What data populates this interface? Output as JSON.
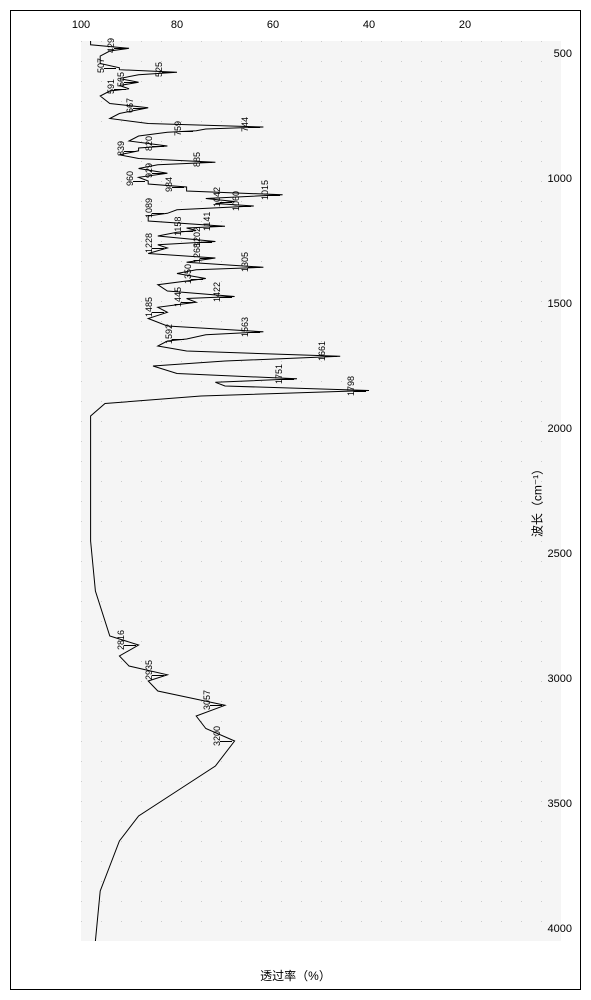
{
  "chart": {
    "type": "line",
    "background_color": "#f5f5f5",
    "line_color": "#000000",
    "grid_color": "#cccccc",
    "xlabel": "透过率（%）",
    "ylabel": "波长（cm⁻¹）",
    "label_fontsize": 12,
    "tick_fontsize": 11,
    "peak_fontsize": 9,
    "x_axis": {
      "min": 0,
      "max": 100,
      "ticks": [
        20,
        40,
        60,
        80,
        100
      ]
    },
    "y_axis": {
      "min": 400,
      "max": 4000,
      "ticks": [
        500,
        1000,
        1500,
        2000,
        2500,
        3000,
        3500,
        4000
      ]
    },
    "peaks": [
      {
        "wn": 429,
        "t": 90
      },
      {
        "wn": 507,
        "t": 92
      },
      {
        "wn": 525,
        "t": 80
      },
      {
        "wn": 565,
        "t": 88
      },
      {
        "wn": 591,
        "t": 90
      },
      {
        "wn": 667,
        "t": 86
      },
      {
        "wn": 744,
        "t": 62
      },
      {
        "wn": 759,
        "t": 76
      },
      {
        "wn": 820,
        "t": 82
      },
      {
        "wn": 839,
        "t": 88
      },
      {
        "wn": 885,
        "t": 72
      },
      {
        "wn": 929,
        "t": 82
      },
      {
        "wn": 960,
        "t": 86
      },
      {
        "wn": 984,
        "t": 78
      },
      {
        "wn": 1015,
        "t": 58
      },
      {
        "wn": 1042,
        "t": 68
      },
      {
        "wn": 1060,
        "t": 64
      },
      {
        "wn": 1089,
        "t": 82
      },
      {
        "wn": 1141,
        "t": 70
      },
      {
        "wn": 1158,
        "t": 76
      },
      {
        "wn": 1202,
        "t": 72
      },
      {
        "wn": 1228,
        "t": 82
      },
      {
        "wn": 1268,
        "t": 72
      },
      {
        "wn": 1305,
        "t": 62
      },
      {
        "wn": 1350,
        "t": 74
      },
      {
        "wn": 1422,
        "t": 68
      },
      {
        "wn": 1445,
        "t": 76
      },
      {
        "wn": 1485,
        "t": 82
      },
      {
        "wn": 1563,
        "t": 62
      },
      {
        "wn": 1592,
        "t": 78
      },
      {
        "wn": 1661,
        "t": 46
      },
      {
        "wn": 1751,
        "t": 55
      },
      {
        "wn": 1798,
        "t": 40
      },
      {
        "wn": 2816,
        "t": 88
      },
      {
        "wn": 2935,
        "t": 82
      },
      {
        "wn": 3057,
        "t": 70
      },
      {
        "wn": 3200,
        "t": 68
      }
    ],
    "baseline_t": 98,
    "trace": [
      {
        "wn": 4000,
        "t": 97
      },
      {
        "wn": 3800,
        "t": 96
      },
      {
        "wn": 3700,
        "t": 94
      },
      {
        "wn": 3600,
        "t": 92
      },
      {
        "wn": 3500,
        "t": 88
      },
      {
        "wn": 3400,
        "t": 80
      },
      {
        "wn": 3300,
        "t": 72
      },
      {
        "wn": 3200,
        "t": 68
      },
      {
        "wn": 3150,
        "t": 74
      },
      {
        "wn": 3100,
        "t": 76
      },
      {
        "wn": 3057,
        "t": 70
      },
      {
        "wn": 3000,
        "t": 84
      },
      {
        "wn": 2960,
        "t": 86
      },
      {
        "wn": 2935,
        "t": 82
      },
      {
        "wn": 2900,
        "t": 90
      },
      {
        "wn": 2860,
        "t": 92
      },
      {
        "wn": 2816,
        "t": 88
      },
      {
        "wn": 2780,
        "t": 94
      },
      {
        "wn": 2600,
        "t": 97
      },
      {
        "wn": 2400,
        "t": 98
      },
      {
        "wn": 2200,
        "t": 98
      },
      {
        "wn": 2000,
        "t": 98
      },
      {
        "wn": 1900,
        "t": 98
      },
      {
        "wn": 1850,
        "t": 95
      },
      {
        "wn": 1820,
        "t": 75
      },
      {
        "wn": 1798,
        "t": 40
      },
      {
        "wn": 1780,
        "t": 70
      },
      {
        "wn": 1765,
        "t": 72
      },
      {
        "wn": 1751,
        "t": 55
      },
      {
        "wn": 1730,
        "t": 80
      },
      {
        "wn": 1700,
        "t": 85
      },
      {
        "wn": 1680,
        "t": 70
      },
      {
        "wn": 1661,
        "t": 46
      },
      {
        "wn": 1640,
        "t": 78
      },
      {
        "wn": 1620,
        "t": 84
      },
      {
        "wn": 1600,
        "t": 82
      },
      {
        "wn": 1592,
        "t": 78
      },
      {
        "wn": 1575,
        "t": 74
      },
      {
        "wn": 1563,
        "t": 62
      },
      {
        "wn": 1540,
        "t": 82
      },
      {
        "wn": 1510,
        "t": 86
      },
      {
        "wn": 1485,
        "t": 82
      },
      {
        "wn": 1465,
        "t": 84
      },
      {
        "wn": 1445,
        "t": 76
      },
      {
        "wn": 1430,
        "t": 78
      },
      {
        "wn": 1422,
        "t": 68
      },
      {
        "wn": 1400,
        "t": 82
      },
      {
        "wn": 1375,
        "t": 84
      },
      {
        "wn": 1350,
        "t": 74
      },
      {
        "wn": 1330,
        "t": 80
      },
      {
        "wn": 1315,
        "t": 76
      },
      {
        "wn": 1305,
        "t": 62
      },
      {
        "wn": 1285,
        "t": 78
      },
      {
        "wn": 1268,
        "t": 72
      },
      {
        "wn": 1250,
        "t": 86
      },
      {
        "wn": 1228,
        "t": 82
      },
      {
        "wn": 1215,
        "t": 84
      },
      {
        "wn": 1202,
        "t": 72
      },
      {
        "wn": 1180,
        "t": 84
      },
      {
        "wn": 1165,
        "t": 80
      },
      {
        "wn": 1158,
        "t": 76
      },
      {
        "wn": 1148,
        "t": 78
      },
      {
        "wn": 1141,
        "t": 70
      },
      {
        "wn": 1120,
        "t": 86
      },
      {
        "wn": 1100,
        "t": 86
      },
      {
        "wn": 1089,
        "t": 82
      },
      {
        "wn": 1075,
        "t": 80
      },
      {
        "wn": 1060,
        "t": 64
      },
      {
        "wn": 1050,
        "t": 72
      },
      {
        "wn": 1042,
        "t": 68
      },
      {
        "wn": 1030,
        "t": 74
      },
      {
        "wn": 1015,
        "t": 58
      },
      {
        "wn": 1000,
        "t": 78
      },
      {
        "wn": 984,
        "t": 78
      },
      {
        "wn": 972,
        "t": 86
      },
      {
        "wn": 960,
        "t": 86
      },
      {
        "wn": 945,
        "t": 88
      },
      {
        "wn": 929,
        "t": 82
      },
      {
        "wn": 910,
        "t": 88
      },
      {
        "wn": 895,
        "t": 84
      },
      {
        "wn": 885,
        "t": 72
      },
      {
        "wn": 870,
        "t": 88
      },
      {
        "wn": 855,
        "t": 92
      },
      {
        "wn": 839,
        "t": 88
      },
      {
        "wn": 828,
        "t": 88
      },
      {
        "wn": 820,
        "t": 82
      },
      {
        "wn": 800,
        "t": 90
      },
      {
        "wn": 780,
        "t": 88
      },
      {
        "wn": 765,
        "t": 82
      },
      {
        "wn": 759,
        "t": 76
      },
      {
        "wn": 752,
        "t": 74
      },
      {
        "wn": 744,
        "t": 62
      },
      {
        "wn": 730,
        "t": 86
      },
      {
        "wn": 710,
        "t": 94
      },
      {
        "wn": 690,
        "t": 92
      },
      {
        "wn": 667,
        "t": 86
      },
      {
        "wn": 650,
        "t": 94
      },
      {
        "wn": 620,
        "t": 96
      },
      {
        "wn": 600,
        "t": 94
      },
      {
        "wn": 591,
        "t": 90
      },
      {
        "wn": 578,
        "t": 92
      },
      {
        "wn": 565,
        "t": 88
      },
      {
        "wn": 550,
        "t": 92
      },
      {
        "wn": 535,
        "t": 88
      },
      {
        "wn": 525,
        "t": 80
      },
      {
        "wn": 515,
        "t": 92
      },
      {
        "wn": 507,
        "t": 92
      },
      {
        "wn": 490,
        "t": 96
      },
      {
        "wn": 460,
        "t": 96
      },
      {
        "wn": 440,
        "t": 94
      },
      {
        "wn": 429,
        "t": 90
      },
      {
        "wn": 415,
        "t": 98
      },
      {
        "wn": 400,
        "t": 98
      }
    ]
  }
}
